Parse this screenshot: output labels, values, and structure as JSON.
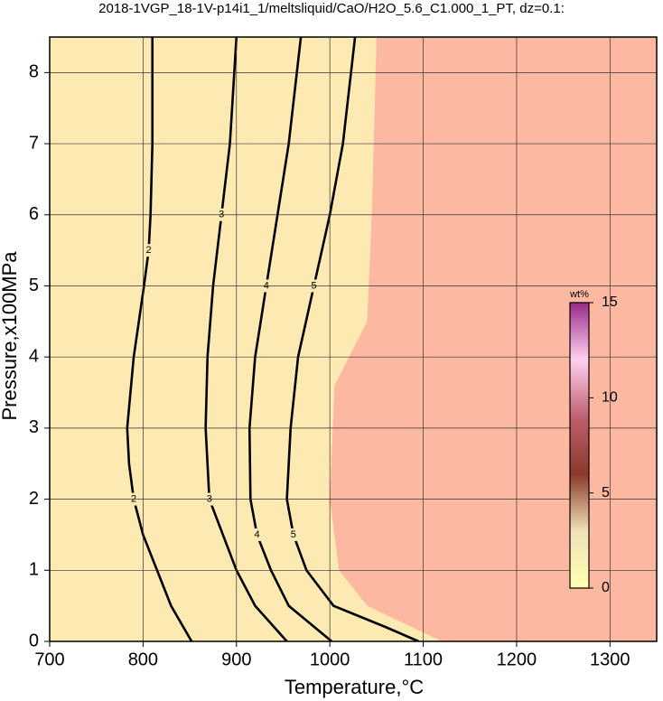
{
  "chart_data": {
    "type": "contour",
    "title": "2018-1VGP_18-1V-p14i1_1/meltsliquid/CaO/H2O_5.6_C1.000_1_PT, dz=0.1:",
    "x_label": "Temperature,°C",
    "y_label": "Pressure,x100MPa",
    "xlim": [
      700,
      1350
    ],
    "ylim": [
      0,
      8.5
    ],
    "xticks": [
      700,
      800,
      900,
      1000,
      1100,
      1200,
      1300
    ],
    "yticks": [
      0,
      1,
      2,
      3,
      4,
      5,
      6,
      7,
      8
    ],
    "grid": true,
    "background": "#fdeab2",
    "regions": [
      {
        "color": "#fcb8a0",
        "x": [
          1050,
          1045,
          1040,
          1005,
          1000,
          1010,
          1040,
          1120,
          1350,
          1350
        ],
        "y": [
          8.5,
          6,
          4.5,
          3.6,
          2,
          1,
          0.5,
          0,
          0,
          8.5
        ]
      }
    ],
    "series": [
      {
        "name": "2",
        "color": "#000000",
        "x": [
          852,
          830,
          815,
          800,
          790,
          785,
          783,
          790,
          801,
          806,
          808,
          810,
          810
        ],
        "y": [
          0,
          0.5,
          1,
          1.5,
          2,
          2.5,
          3,
          4,
          5,
          5.5,
          6,
          7,
          8.5
        ]
      },
      {
        "name": "3",
        "color": "#000000",
        "x": [
          954,
          920,
          900,
          871,
          867,
          869,
          875,
          884,
          893,
          900
        ],
        "y": [
          0,
          0.5,
          1,
          2,
          3,
          4,
          5,
          6,
          7,
          8.5
        ]
      },
      {
        "name": "4",
        "color": "#000000",
        "x": [
          1002,
          956,
          937,
          922,
          915,
          914,
          920,
          932,
          944,
          956,
          969
        ],
        "y": [
          0,
          0.5,
          1,
          1.5,
          2,
          3,
          4,
          5,
          6,
          7,
          8.5
        ]
      },
      {
        "name": "5",
        "color": "#000000",
        "x": [
          1095,
          1060,
          1004,
          975,
          961,
          954,
          958,
          966,
          983,
          1000,
          1014,
          1027
        ],
        "y": [
          0,
          0.2,
          0.5,
          1,
          1.5,
          2,
          3,
          4,
          5,
          6,
          7,
          8.5
        ]
      }
    ],
    "colorbar": {
      "label": "wt%",
      "lim": [
        0,
        15
      ],
      "ticks": [
        0,
        5,
        10,
        15
      ],
      "colors": [
        "#ffffb0",
        "#f0e0b8",
        "#8a3a2a",
        "#c06070",
        "#ffd0f0",
        "#9a2a8a"
      ]
    }
  }
}
